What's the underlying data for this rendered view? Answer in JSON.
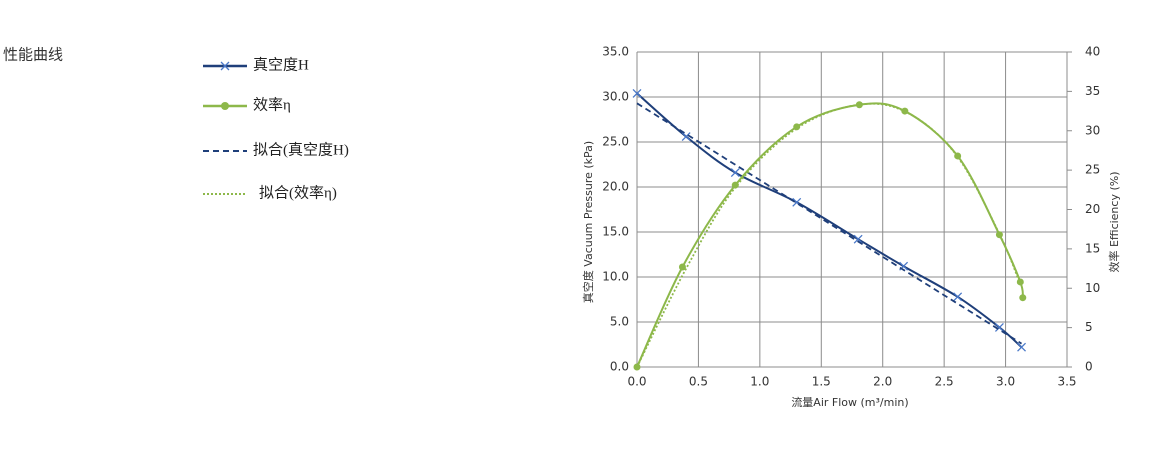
{
  "page": {
    "heading": "性能曲线"
  },
  "chart_data": {
    "type": "line",
    "xlabel": "流量Air Flow (m³/min)",
    "ylabel": "真空度 Vacuum Pressure (kPa)",
    "y2label": "效率 Efficiency (%)",
    "xlim": [
      0,
      3.5
    ],
    "xticks": [
      {
        "value": 0,
        "label": "0.0"
      },
      0.5,
      {
        "value": 1,
        "label": "1.0"
      },
      1.5,
      {
        "value": 2,
        "label": "2.0"
      },
      2.5,
      {
        "value": 3,
        "label": "3.0"
      },
      3.5
    ],
    "ylim": [
      0,
      35
    ],
    "yticks": [
      {
        "value": 0,
        "label": "0.0"
      },
      {
        "value": 5,
        "label": "5.0"
      },
      {
        "value": 10,
        "label": "10.0"
      },
      {
        "value": 15,
        "label": "15.0"
      },
      {
        "value": 20,
        "label": "20.0"
      },
      {
        "value": 25,
        "label": "25.0"
      },
      {
        "value": 30,
        "label": "30.0"
      },
      {
        "value": 35,
        "label": "35.0"
      }
    ],
    "y2lim": [
      0,
      40
    ],
    "y2ticks": [
      0,
      5,
      10,
      15,
      20,
      25,
      30,
      35,
      40
    ],
    "grid": true,
    "series": [
      {
        "name": "真空度H",
        "color": "#1f3f7a",
        "style": "solid",
        "marker": "x",
        "axis": "y",
        "x": [
          0,
          0.4,
          0.8,
          1.3,
          1.8,
          2.17,
          2.61,
          2.95,
          3.13
        ],
        "values": [
          30.4,
          25.6,
          21.6,
          18.3,
          14.2,
          11.2,
          7.8,
          4.4,
          2.2
        ]
      },
      {
        "name": "效率η",
        "color": "#8db84a",
        "style": "solid",
        "marker": "circle",
        "axis": "y2",
        "x": [
          0,
          0.37,
          0.8,
          1.3,
          1.81,
          2.18,
          2.61,
          2.95,
          3.12,
          3.14
        ],
        "values": [
          0,
          12.7,
          23.1,
          30.5,
          33.3,
          32.5,
          26.8,
          16.8,
          10.8,
          8.8
        ]
      },
      {
        "name": "拟合(真空度H)",
        "color": "#1f3f7a",
        "style": "dashed",
        "axis": "y",
        "x": [
          0,
          3.13
        ],
        "values": [
          29.3,
          2.6
        ]
      },
      {
        "name": "拟合(效率η)",
        "color": "#8db84a",
        "style": "dotted",
        "axis": "y2",
        "x": [
          0,
          0.4,
          0.8,
          1.3,
          1.8,
          2.2,
          2.6,
          2.95,
          3.12
        ],
        "values": [
          0,
          12.5,
          22.8,
          30.3,
          33.3,
          32.3,
          26.9,
          16.9,
          10.5
        ]
      }
    ]
  }
}
